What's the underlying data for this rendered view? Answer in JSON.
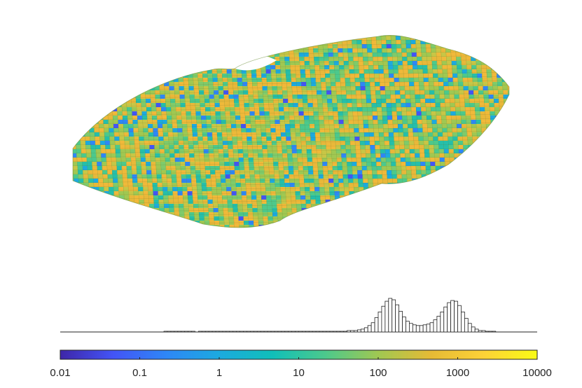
{
  "chart_data": {
    "type": "histogram",
    "scale": "log",
    "colormap": "parula",
    "colormap_stops": [
      "#3e26a8",
      "#4354f6",
      "#2e87f7",
      "#1caadf",
      "#10bfb9",
      "#4cc98c",
      "#a0c852",
      "#e6ba35",
      "#fdd237",
      "#f9fb15"
    ],
    "colorbar": {
      "range": [
        0.01,
        10000
      ],
      "ticks": [
        {
          "value": 0.01,
          "label": "0.01"
        },
        {
          "value": 0.1,
          "label": "0.1"
        },
        {
          "value": 1,
          "label": "1"
        },
        {
          "value": 10,
          "label": "10"
        },
        {
          "value": 100,
          "label": "100"
        },
        {
          "value": 1000,
          "label": "1000"
        },
        {
          "value": 10000,
          "label": "10000"
        }
      ]
    },
    "histogram": {
      "x_range": [
        0.01,
        10000
      ],
      "bin_edges_log10": [
        -2,
        4
      ],
      "counts": [
        0,
        0,
        0,
        0,
        0,
        0,
        0,
        0,
        0,
        0,
        0,
        0,
        0,
        0,
        0,
        0,
        0,
        0,
        0,
        0,
        0,
        0,
        0,
        0,
        0,
        0,
        0,
        0,
        0,
        0,
        1,
        1,
        1,
        1,
        1,
        1,
        1,
        1,
        1,
        0,
        1,
        1,
        1,
        1,
        1,
        1,
        1,
        1,
        1,
        1,
        1,
        1,
        1,
        1,
        1,
        1,
        1,
        1,
        1,
        1,
        1,
        1,
        1,
        1,
        1,
        1,
        1,
        1,
        1,
        1,
        1,
        1,
        1,
        1,
        1,
        1,
        1,
        1,
        1,
        1,
        1,
        1,
        1,
        2,
        2,
        2,
        3,
        4,
        6,
        9,
        13,
        20,
        28,
        36,
        43,
        47,
        45,
        38,
        29,
        21,
        15,
        12,
        10,
        9,
        9,
        10,
        11,
        13,
        17,
        22,
        28,
        35,
        41,
        44,
        43,
        37,
        28,
        19,
        12,
        7,
        4,
        2,
        2,
        1,
        1,
        1,
        0,
        0,
        0,
        0,
        0,
        0,
        0,
        0,
        0,
        0,
        0,
        0
      ]
    },
    "grid": false,
    "legend": "none"
  }
}
